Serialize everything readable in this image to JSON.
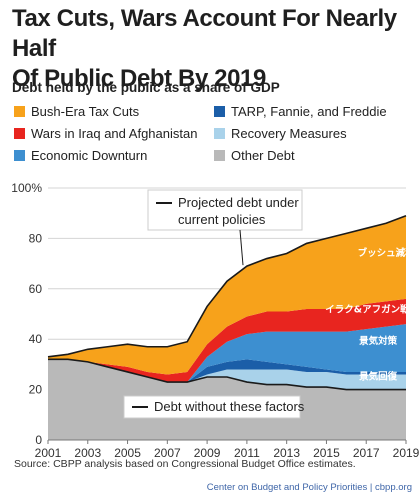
{
  "title_line1": "Tax Cuts, Wars Account For Nearly Half",
  "title_line2": "Of Public Debt By 2019",
  "subtitle": "Debt held by the public as a share of GDP",
  "source": "Source:  CBPP analysis based on Congressional Budget Office estimates.",
  "credit": "Center on Budget and Policy Priorities | cbpp.org",
  "colors": {
    "bush_tax_cuts": "#f7a21b",
    "wars": "#e8251f",
    "economic_downturn": "#3d8fd0",
    "tarp": "#1b5ea8",
    "recovery": "#a9d2ea",
    "other_debt": "#b9b9b9"
  },
  "chart_data": {
    "type": "area",
    "subtitle": "Debt held by the public as a share of GDP",
    "x": [
      2001,
      2002,
      2003,
      2004,
      2005,
      2006,
      2007,
      2008,
      2009,
      2010,
      2011,
      2012,
      2013,
      2014,
      2015,
      2016,
      2017,
      2018,
      2019
    ],
    "xticks": [
      "2001",
      "2003",
      "2005",
      "2007",
      "2009",
      "2011",
      "2013",
      "2015",
      "2017",
      "2019"
    ],
    "yticks": [
      "0",
      "20",
      "40",
      "60",
      "80",
      "100%"
    ],
    "ylim": [
      0,
      100
    ],
    "stack_order_bottom_to_top": [
      "Other Debt",
      "Recovery Measures",
      "TARP, Fannie, and Freddie",
      "Economic Downturn",
      "Wars in Iraq and Afghanistan",
      "Bush-Era Tax Cuts"
    ],
    "series": [
      {
        "name": "Other Debt",
        "key": "other_debt",
        "values": [
          32,
          32,
          31,
          29,
          27,
          25,
          23,
          23,
          25,
          25,
          23,
          22,
          22,
          21,
          21,
          20,
          20,
          20,
          20
        ]
      },
      {
        "name": "Recovery Measures",
        "key": "recovery",
        "values": [
          0,
          0,
          0,
          0,
          0,
          0,
          0,
          0,
          1,
          3,
          5,
          6,
          6,
          6,
          6,
          6,
          6,
          6,
          6
        ]
      },
      {
        "name": "TARP, Fannie, and Freddie",
        "key": "tarp",
        "values": [
          0,
          0,
          0,
          0,
          0,
          0,
          0,
          0,
          3,
          3,
          4,
          3,
          2,
          2,
          1,
          1,
          1,
          1,
          1
        ]
      },
      {
        "name": "Economic Downturn",
        "key": "economic_downturn",
        "values": [
          0,
          0,
          0,
          0,
          0,
          0,
          0,
          0,
          4,
          8,
          10,
          12,
          13,
          14,
          15,
          16,
          17,
          18,
          19
        ]
      },
      {
        "name": "Wars in Iraq and Afghanistan",
        "key": "wars",
        "values": [
          0,
          0,
          0,
          1,
          2,
          2,
          3,
          4,
          5,
          6,
          7,
          8,
          8,
          9,
          9,
          9,
          10,
          10,
          10
        ]
      },
      {
        "name": "Bush-Era Tax Cuts",
        "key": "bush_tax_cuts",
        "values": [
          1,
          2,
          5,
          7,
          9,
          10,
          11,
          12,
          15,
          18,
          20,
          21,
          23,
          26,
          28,
          30,
          30,
          31,
          33
        ]
      }
    ],
    "lines": [
      {
        "name": "Projected debt under current policies",
        "values": [
          33,
          34,
          36,
          37,
          38,
          37,
          37,
          39,
          53,
          63,
          69,
          72,
          74,
          78,
          80,
          82,
          84,
          86,
          89
        ]
      },
      {
        "name": "Debt without these factors",
        "values": [
          32,
          32,
          31,
          29,
          27,
          25,
          23,
          23,
          25,
          25,
          23,
          22,
          22,
          21,
          21,
          20,
          20,
          20,
          20
        ]
      }
    ],
    "legend": [
      {
        "label": "Bush-Era Tax Cuts",
        "key": "bush_tax_cuts"
      },
      {
        "label": "TARP, Fannie, and Freddie",
        "key": "tarp"
      },
      {
        "label": "Wars in Iraq and Afghanistan",
        "key": "wars"
      },
      {
        "label": "Recovery Measures",
        "key": "recovery"
      },
      {
        "label": "Economic Downturn",
        "key": "economic_downturn"
      },
      {
        "label": "Other Debt",
        "key": "other_debt"
      }
    ],
    "annotations": [
      {
        "text": "Projected debt under current policies",
        "lines": [
          "Projected debt under",
          "current policies"
        ]
      },
      {
        "text": "Debt without these factors",
        "lines": [
          "Debt without these factors"
        ]
      }
    ],
    "in_chart_labels": [
      {
        "text": "ブッシュ減税",
        "key": "bush_tax_cuts",
        "x": 2018,
        "y": 73
      },
      {
        "text": "イラク&アフガン戦争",
        "key": "wars",
        "x": 2017.3,
        "y": 50.5
      },
      {
        "text": "景気対策",
        "key": "economic_downturn",
        "x": 2017.6,
        "y": 38
      },
      {
        "text": "景気回復",
        "key": "recovery",
        "x": 2017.6,
        "y": 24
      }
    ]
  }
}
